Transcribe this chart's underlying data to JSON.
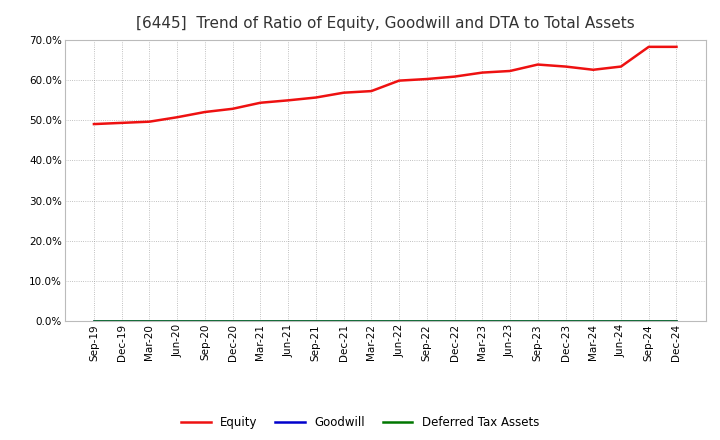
{
  "title": "[6445]  Trend of Ratio of Equity, Goodwill and DTA to Total Assets",
  "x_labels": [
    "Sep-19",
    "Dec-19",
    "Mar-20",
    "Jun-20",
    "Sep-20",
    "Dec-20",
    "Mar-21",
    "Jun-21",
    "Sep-21",
    "Dec-21",
    "Mar-22",
    "Jun-22",
    "Sep-22",
    "Dec-22",
    "Mar-23",
    "Jun-23",
    "Sep-23",
    "Dec-23",
    "Mar-24",
    "Jun-24",
    "Sep-24",
    "Dec-24"
  ],
  "equity": [
    0.49,
    0.493,
    0.496,
    0.507,
    0.52,
    0.528,
    0.543,
    0.549,
    0.556,
    0.568,
    0.572,
    0.598,
    0.602,
    0.608,
    0.618,
    0.622,
    0.638,
    0.633,
    0.625,
    0.633,
    0.682,
    0.682
  ],
  "goodwill": [
    0.0,
    0.0,
    0.0,
    0.0,
    0.0,
    0.0,
    0.0,
    0.0,
    0.0,
    0.0,
    0.0,
    0.0,
    0.0,
    0.0,
    0.0,
    0.0,
    0.0,
    0.0,
    0.0,
    0.0,
    0.0,
    0.0
  ],
  "dta": [
    0.0,
    0.0,
    0.0,
    0.0,
    0.0,
    0.0,
    0.0,
    0.0,
    0.0,
    0.0,
    0.0,
    0.0,
    0.0,
    0.0,
    0.0,
    0.0,
    0.0,
    0.0,
    0.0,
    0.0,
    0.0,
    0.0
  ],
  "equity_color": "#ee1111",
  "goodwill_color": "#0000cc",
  "dta_color": "#007700",
  "ylim_min": 0.0,
  "ylim_max": 0.7,
  "yticks": [
    0.0,
    0.1,
    0.2,
    0.3,
    0.4,
    0.5,
    0.6,
    0.7
  ],
  "background_color": "#ffffff",
  "grid_color": "#999999",
  "title_fontsize": 11,
  "tick_fontsize": 7.5,
  "legend_entries": [
    "Equity",
    "Goodwill",
    "Deferred Tax Assets"
  ]
}
